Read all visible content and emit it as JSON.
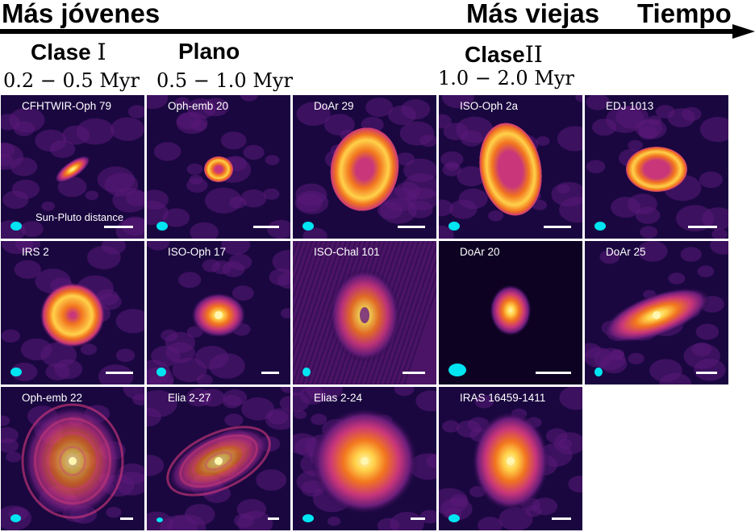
{
  "header": {
    "younger": "Más jóvenes",
    "older": "Más viejas",
    "time": "Tiempo"
  },
  "classes": [
    {
      "name": "Clase",
      "roman": "I",
      "age": "0.2 − 0.5 Myr"
    },
    {
      "name": "Plano",
      "roman": "",
      "age": "0.5 − 1.0 Myr"
    },
    {
      "name": "Clase",
      "roman": "II",
      "age": "1.0 − 2.0 Myr"
    }
  ],
  "scale_label": "Sun-Pluto distance",
  "panels": [
    {
      "label": "CFHTWIR-Oph 79"
    },
    {
      "label": "Oph-emb 20"
    },
    {
      "label": "DoAr 29"
    },
    {
      "label": "ISO-Oph 2a"
    },
    {
      "label": "EDJ 1013"
    },
    {
      "label": "IRS 2"
    },
    {
      "label": "ISO-Oph 17"
    },
    {
      "label": "ISO-Chal 101"
    },
    {
      "label": "DoAr 20"
    },
    {
      "label": "DoAr 25"
    },
    {
      "label": "Oph-emb 22"
    },
    {
      "label": "Elia 2-27"
    },
    {
      "label": "Elias 2-24"
    },
    {
      "label": "IRAS 16459-1411"
    }
  ],
  "colors": {
    "background": "#1a0740",
    "beam": "#00e5f2",
    "colormap": [
      "#1a0740",
      "#6a1d7a",
      "#c9367a",
      "#f2751f",
      "#ffd24a",
      "#fff6b0"
    ]
  }
}
